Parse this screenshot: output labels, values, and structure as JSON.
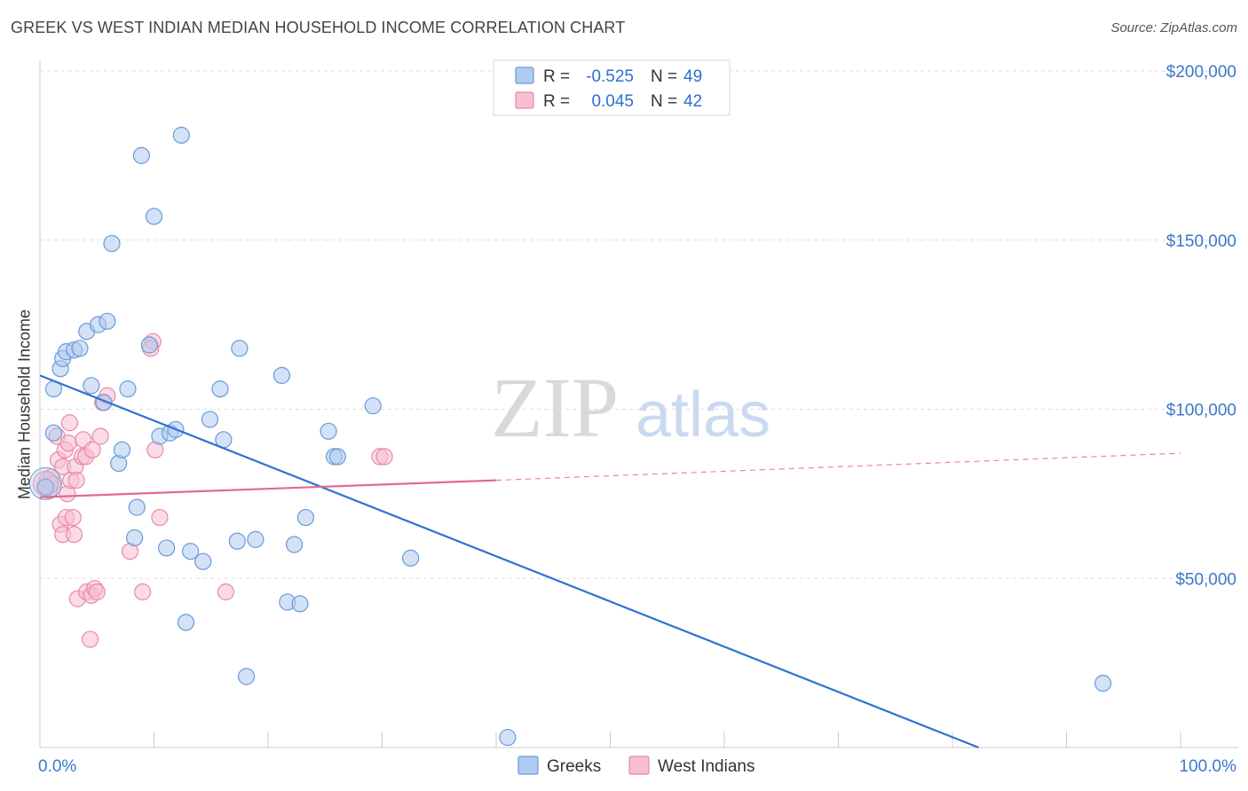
{
  "title": "GREEK VS WEST INDIAN MEDIAN HOUSEHOLD INCOME CORRELATION CHART",
  "source": "Source: ZipAtlas.com",
  "watermark": {
    "zip": "ZIP",
    "atlas": "atlas"
  },
  "colors": {
    "blue_fill": "#aecbf0",
    "blue_stroke": "#6a9ad8",
    "blue_line": "#2e72d2",
    "pink_fill": "#f7bdd0",
    "pink_stroke": "#e88aa8",
    "pink_line": "#e0698f",
    "grid": "#dddddd",
    "tick_text": "#3c78c8"
  },
  "legend": {
    "r_label": "R =",
    "n_label": "N =",
    "rows": [
      {
        "series": "blue",
        "r": "-0.525",
        "n": "49"
      },
      {
        "series": "pink",
        "r": "0.045",
        "n": "42"
      }
    ]
  },
  "chart_data": {
    "type": "scatter",
    "title": "GREEK VS WEST INDIAN MEDIAN HOUSEHOLD INCOME CORRELATION CHART",
    "xlabel": "",
    "ylabel": "Median Household Income",
    "xlim": [
      0,
      100
    ],
    "ylim": [
      0,
      205000
    ],
    "x_tick_labels": [
      "0.0%",
      "100.0%"
    ],
    "y_ticks": [
      50000,
      100000,
      150000,
      200000
    ],
    "y_tick_labels": [
      "$50,000",
      "$100,000",
      "$150,000",
      "$200,000"
    ],
    "grid": true,
    "legend_position": "bottom",
    "series": [
      {
        "name": "Greeks",
        "color": "blue",
        "r": -0.525,
        "n": 49,
        "trend": {
          "x0": 0,
          "y0": 110000,
          "x1": 82.3,
          "y1": 0
        },
        "points": [
          [
            1.2,
            93000
          ],
          [
            1.2,
            106000
          ],
          [
            1.8,
            112000
          ],
          [
            2.0,
            115000
          ],
          [
            2.3,
            117000
          ],
          [
            3.0,
            117500
          ],
          [
            3.5,
            118000
          ],
          [
            4.1,
            123000
          ],
          [
            4.5,
            107000
          ],
          [
            5.1,
            125000
          ],
          [
            5.6,
            102000
          ],
          [
            5.9,
            126000
          ],
          [
            6.3,
            149000
          ],
          [
            6.9,
            84000
          ],
          [
            7.2,
            88000
          ],
          [
            7.7,
            106000
          ],
          [
            8.3,
            62000
          ],
          [
            8.5,
            71000
          ],
          [
            8.9,
            175000
          ],
          [
            9.6,
            119000
          ],
          [
            10.0,
            157000
          ],
          [
            10.5,
            92000
          ],
          [
            11.1,
            59000
          ],
          [
            11.4,
            93000
          ],
          [
            11.9,
            94000
          ],
          [
            12.4,
            181000
          ],
          [
            12.8,
            37000
          ],
          [
            13.2,
            58000
          ],
          [
            14.3,
            55000
          ],
          [
            14.9,
            97000
          ],
          [
            15.8,
            106000
          ],
          [
            16.1,
            91000
          ],
          [
            17.3,
            61000
          ],
          [
            17.5,
            118000
          ],
          [
            18.1,
            21000
          ],
          [
            18.9,
            61500
          ],
          [
            21.2,
            110000
          ],
          [
            21.7,
            43000
          ],
          [
            22.3,
            60000
          ],
          [
            22.8,
            42500
          ],
          [
            23.3,
            68000
          ],
          [
            25.3,
            93500
          ],
          [
            25.8,
            86000
          ],
          [
            26.1,
            86000
          ],
          [
            29.2,
            101000
          ],
          [
            32.5,
            56000
          ],
          [
            41.0,
            3000
          ],
          [
            93.2,
            19000
          ],
          [
            0.5,
            77000
          ]
        ]
      },
      {
        "name": "West Indians",
        "color": "pink",
        "r": 0.045,
        "n": 42,
        "trend": {
          "x0": 0,
          "y0": 74000,
          "x1": 40,
          "y1": 79000,
          "dashed_to_x": 100,
          "dashed_to_y": 87000
        },
        "points": [
          [
            0.4,
            77000
          ],
          [
            0.6,
            79000
          ],
          [
            0.8,
            76000
          ],
          [
            1.0,
            80000
          ],
          [
            1.1,
            78000
          ],
          [
            1.5,
            92000
          ],
          [
            1.6,
            85000
          ],
          [
            1.8,
            66000
          ],
          [
            2.0,
            83000
          ],
          [
            2.0,
            63000
          ],
          [
            2.2,
            88000
          ],
          [
            2.3,
            68000
          ],
          [
            2.4,
            75000
          ],
          [
            2.5,
            90000
          ],
          [
            2.6,
            96000
          ],
          [
            2.7,
            79000
          ],
          [
            2.9,
            68000
          ],
          [
            3.0,
            63000
          ],
          [
            3.1,
            83000
          ],
          [
            3.2,
            79000
          ],
          [
            3.3,
            44000
          ],
          [
            3.7,
            86000
          ],
          [
            3.8,
            91000
          ],
          [
            4.0,
            86000
          ],
          [
            4.1,
            46000
          ],
          [
            4.4,
            32000
          ],
          [
            4.5,
            45000
          ],
          [
            4.6,
            88000
          ],
          [
            4.8,
            47000
          ],
          [
            5.0,
            46000
          ],
          [
            5.3,
            92000
          ],
          [
            5.5,
            102000
          ],
          [
            5.9,
            104000
          ],
          [
            7.9,
            58000
          ],
          [
            9.0,
            46000
          ],
          [
            9.9,
            120000
          ],
          [
            10.1,
            88000
          ],
          [
            10.5,
            68000
          ],
          [
            16.3,
            46000
          ],
          [
            29.8,
            86000
          ],
          [
            30.2,
            86000
          ],
          [
            9.7,
            118000
          ]
        ]
      }
    ]
  }
}
